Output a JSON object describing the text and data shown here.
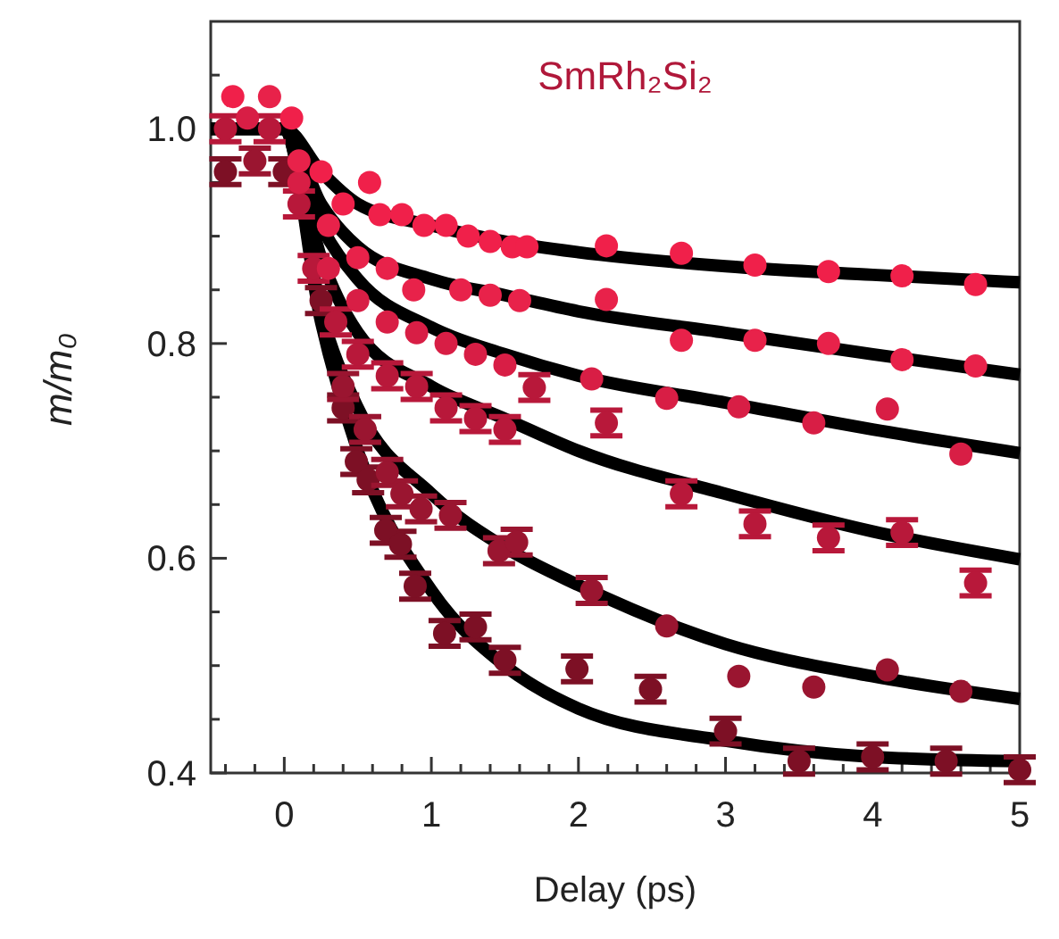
{
  "chart_data": {
    "type": "scatter",
    "title": "SmRh₂Si₂",
    "xlabel": "Delay (ps)",
    "ylabel": "m/m₀",
    "xlim": [
      -0.5,
      5
    ],
    "ylim": [
      0.4,
      1.1
    ],
    "marker": "circle",
    "xticks": [
      {
        "value": -0.4,
        "label": null
      },
      {
        "value": -0.2,
        "label": null
      },
      0,
      {
        "value": 0.2,
        "label": null
      },
      {
        "value": 0.4,
        "label": null
      },
      {
        "value": 0.6,
        "label": null
      },
      {
        "value": 0.8,
        "label": null
      },
      1,
      {
        "value": 1.2,
        "label": null
      },
      {
        "value": 1.4,
        "label": null
      },
      {
        "value": 1.6,
        "label": null
      },
      {
        "value": 1.8,
        "label": null
      },
      2,
      {
        "value": 2.2,
        "label": null
      },
      {
        "value": 2.4,
        "label": null
      },
      {
        "value": 2.6,
        "label": null
      },
      {
        "value": 2.8,
        "label": null
      },
      3,
      {
        "value": 3.2,
        "label": null
      },
      {
        "value": 3.4,
        "label": null
      },
      {
        "value": 3.6,
        "label": null
      },
      {
        "value": 3.8,
        "label": null
      },
      4,
      {
        "value": 4.2,
        "label": null
      },
      {
        "value": 4.4,
        "label": null
      },
      {
        "value": 4.6,
        "label": null
      },
      {
        "value": 4.8,
        "label": null
      },
      5
    ],
    "yticks": [
      0.4,
      {
        "value": 0.45,
        "label": null
      },
      {
        "value": 0.5,
        "label": null
      },
      {
        "value": 0.55,
        "label": null
      },
      0.6,
      {
        "value": 0.65,
        "label": null
      },
      {
        "value": 0.7,
        "label": null
      },
      {
        "value": 0.75,
        "label": null
      },
      0.8,
      {
        "value": 0.85,
        "label": null
      },
      {
        "value": 0.9,
        "label": null
      },
      {
        "value": 0.95,
        "label": null
      },
      {
        "value": 1,
        "label": "1.0"
      },
      {
        "value": 1.05,
        "label": null
      }
    ],
    "series": [
      {
        "type": "line",
        "color": "#000000",
        "marker": "none",
        "x": [
          -0.5,
          0,
          0.25,
          0.5,
          1,
          1.5,
          2,
          3,
          4,
          5
        ],
        "values": [
          1,
          1,
          0.96,
          0.93,
          0.91,
          0.895,
          0.885,
          0.872,
          0.864,
          0.857
        ]
      },
      {
        "type": "line",
        "color": "#000000",
        "marker": "none",
        "x": [
          -0.5,
          0,
          0.25,
          0.5,
          1,
          1.5,
          2,
          3,
          4,
          5
        ],
        "values": [
          1,
          1,
          0.93,
          0.89,
          0.86,
          0.845,
          0.83,
          0.81,
          0.79,
          0.771
        ]
      },
      {
        "type": "line",
        "color": "#000000",
        "marker": "none",
        "x": [
          -0.5,
          0,
          0.25,
          0.5,
          1,
          1.5,
          2,
          3,
          4,
          5
        ],
        "values": [
          1,
          1,
          0.91,
          0.86,
          0.815,
          0.79,
          0.77,
          0.745,
          0.72,
          0.698
        ]
      },
      {
        "type": "line",
        "color": "#000000",
        "marker": "none",
        "x": [
          -0.5,
          0,
          0.25,
          0.5,
          1,
          1.5,
          2,
          3,
          4,
          5
        ],
        "values": [
          1,
          1,
          0.88,
          0.81,
          0.76,
          0.73,
          0.7,
          0.66,
          0.625,
          0.599
        ]
      },
      {
        "type": "line",
        "color": "#000000",
        "marker": "none",
        "x": [
          -0.5,
          0,
          0.25,
          0.5,
          1,
          1.5,
          2,
          3,
          4,
          5
        ],
        "values": [
          1,
          1,
          0.83,
          0.74,
          0.66,
          0.61,
          0.575,
          0.52,
          0.49,
          0.469
        ]
      },
      {
        "type": "line",
        "color": "#000000",
        "marker": "none",
        "x": [
          -0.5,
          0,
          0.25,
          0.5,
          1,
          1.5,
          2,
          3,
          4,
          5
        ],
        "values": [
          1,
          1,
          0.82,
          0.7,
          0.57,
          0.5,
          0.46,
          0.43,
          0.415,
          0.411
        ]
      },
      {
        "type": "scatter",
        "color": "#7d1025",
        "x": [
          -0.4,
          0,
          0.25,
          0.4,
          0.49,
          0.57,
          0.69,
          0.79,
          0.89,
          1.09,
          1.3,
          1.5,
          1.99,
          2.49,
          3.0,
          3.5,
          4.0,
          4.5,
          5.0
        ],
        "values": [
          0.96,
          0.96,
          0.84,
          0.74,
          0.69,
          0.673,
          0.626,
          0.613,
          0.574,
          0.53,
          0.536,
          0.505,
          0.497,
          0.478,
          0.439,
          0.411,
          0.415,
          0.411,
          0.403
        ],
        "errors": [
          0.012,
          0.012,
          0.012,
          0.012,
          0.012,
          0.012,
          0.012,
          0.012,
          0.012,
          0.012,
          0.012,
          0.012,
          0.012,
          0.012,
          0.012,
          0.012,
          0.012,
          0.012,
          0.012
        ]
      },
      {
        "type": "scatter",
        "color": "#9a1530",
        "x": [
          -0.2,
          0.4,
          0.55,
          0.7,
          0.8,
          0.93,
          1.13,
          1.46,
          1.58,
          2.09,
          2.6,
          3.09,
          3.6,
          4.1,
          4.6
        ],
        "values": [
          0.97,
          0.76,
          0.72,
          0.68,
          0.66,
          0.646,
          0.64,
          0.607,
          0.615,
          0.57,
          0.537,
          0.49,
          0.48,
          0.496,
          0.476
        ],
        "errors": [
          0.012,
          0.012,
          0.012,
          0.012,
          0.012,
          0.012,
          0.012,
          0.012,
          0.012,
          0.012,
          null,
          null,
          null,
          null,
          null
        ]
      },
      {
        "type": "scatter",
        "color": "#b8183a",
        "x": [
          -0.4,
          -0.1,
          0.1,
          0.2,
          0.35,
          0.5,
          0.7,
          0.9,
          1.1,
          1.3,
          1.5,
          1.7,
          2.19,
          2.7,
          3.2,
          3.7,
          4.2,
          4.7
        ],
        "values": [
          1.0,
          1.0,
          0.93,
          0.87,
          0.82,
          0.79,
          0.77,
          0.76,
          0.74,
          0.73,
          0.72,
          0.759,
          0.726,
          0.66,
          0.632,
          0.619,
          0.624,
          0.577
        ],
        "errors": [
          0.012,
          0.012,
          0.012,
          0.012,
          0.012,
          0.012,
          0.012,
          0.012,
          0.012,
          0.012,
          0.012,
          0.012,
          0.012,
          0.012,
          0.012,
          0.012,
          0.012,
          0.012
        ]
      },
      {
        "type": "scatter",
        "color": "#d81e45",
        "x": [
          -0.25,
          0.1,
          0.3,
          0.5,
          0.7,
          0.9,
          1.1,
          1.3,
          1.5,
          2.09,
          2.6,
          3.09,
          3.6,
          4.1,
          4.6
        ],
        "values": [
          1.01,
          0.95,
          0.87,
          0.84,
          0.82,
          0.81,
          0.8,
          0.79,
          0.78,
          0.767,
          0.749,
          0.741,
          0.726,
          0.739,
          0.697
        ]
      },
      {
        "type": "scatter",
        "color": "#e8224a",
        "x": [
          -0.1,
          0.1,
          0.3,
          0.5,
          0.7,
          0.88,
          1.2,
          1.4,
          1.6,
          2.19,
          2.7,
          3.2,
          3.7,
          4.2,
          4.7
        ],
        "values": [
          1.03,
          0.97,
          0.91,
          0.88,
          0.87,
          0.85,
          0.85,
          0.845,
          0.84,
          0.841,
          0.803,
          0.803,
          0.8,
          0.785,
          0.779
        ]
      },
      {
        "type": "scatter",
        "color": "#f0204a",
        "x": [
          -0.35,
          0.05,
          0.25,
          0.4,
          0.58,
          0.65,
          0.8,
          0.95,
          1.1,
          1.25,
          1.4,
          1.55,
          1.65,
          2.19,
          2.7,
          3.2,
          3.7,
          4.2,
          4.7
        ],
        "values": [
          1.03,
          1.01,
          0.96,
          0.93,
          0.95,
          0.92,
          0.92,
          0.91,
          0.91,
          0.9,
          0.895,
          0.89,
          0.89,
          0.891,
          0.884,
          0.873,
          0.867,
          0.863,
          0.855
        ]
      }
    ]
  }
}
